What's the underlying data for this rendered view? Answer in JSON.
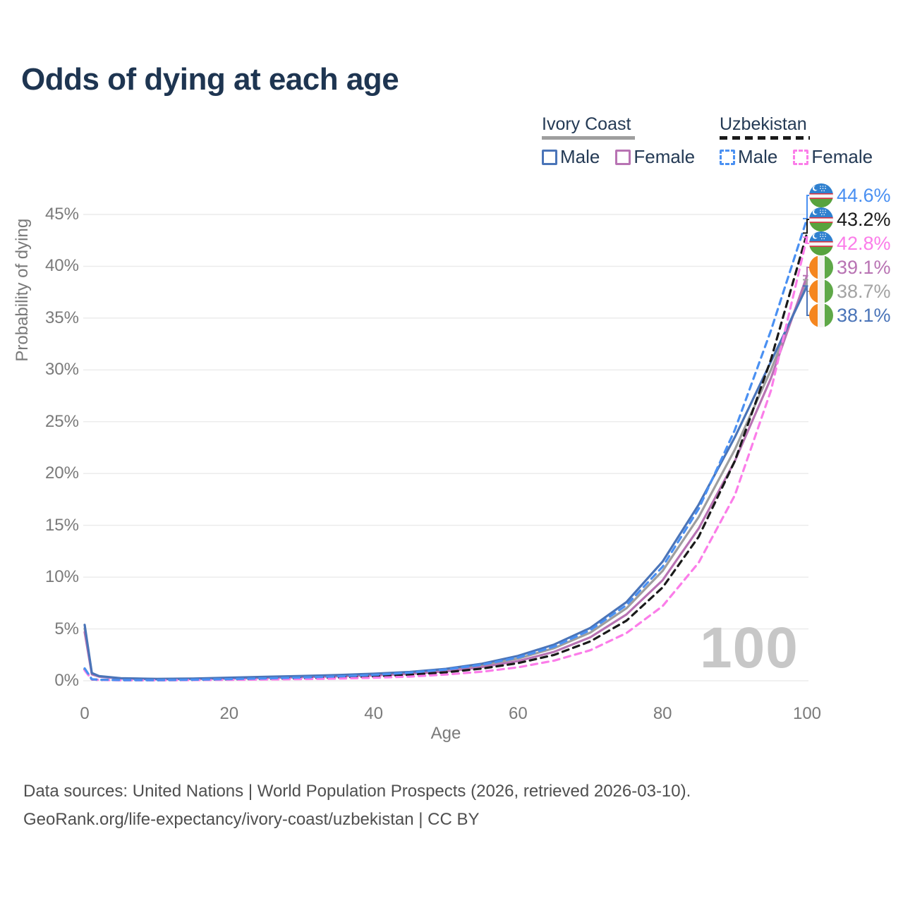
{
  "title": "Odds of dying at each age",
  "watermark_age": "100",
  "legend": {
    "groups": [
      {
        "name": "Ivory Coast",
        "line_style": "solid",
        "combined_color": "#9e9e9e",
        "items": [
          {
            "label": "Male",
            "color": "#4a74b8"
          },
          {
            "label": "Female",
            "color": "#b873b3"
          }
        ]
      },
      {
        "name": "Uzbekistan",
        "line_style": "dashed",
        "combined_color": "#1a1a1a",
        "items": [
          {
            "label": "Male",
            "color": "#4a90f2"
          },
          {
            "label": "Female",
            "color": "#fb7de9"
          }
        ]
      }
    ]
  },
  "axes": {
    "y_title": "Probability of dying",
    "x_title": "Age",
    "y_tick_labels": [
      "0%",
      "5%",
      "10%",
      "15%",
      "20%",
      "25%",
      "30%",
      "35%",
      "40%",
      "45%"
    ],
    "x_tick_labels": [
      "0",
      "20",
      "40",
      "60",
      "80",
      "100"
    ]
  },
  "end_labels": [
    {
      "flag": "uzbekistan-flag",
      "series": "Uzbekistan Male",
      "value": "44.6%",
      "color": "#4a90f2"
    },
    {
      "flag": "uzbekistan-flag",
      "series": "Uzbekistan Both sexes",
      "value": "43.2%",
      "color": "#1a1a1a"
    },
    {
      "flag": "uzbekistan-flag",
      "series": "Uzbekistan Female",
      "value": "42.8%",
      "color": "#fb7de9"
    },
    {
      "flag": "ivory-coast-flag",
      "series": "Ivory Coast Female",
      "value": "39.1%",
      "color": "#b873b3"
    },
    {
      "flag": "ivory-coast-flag",
      "series": "Ivory Coast Both sexes",
      "value": "38.7%",
      "color": "#a3a3a3"
    },
    {
      "flag": "ivory-coast-flag",
      "series": "Ivory Coast Male",
      "value": "38.1%",
      "color": "#4a74b8"
    }
  ],
  "footer": {
    "line1": "Data sources: United Nations | World Population Prospects (2026, retrieved 2026-03-10).",
    "line2": "GeoRank.org/life-expectancy/ivory-coast/uzbekistan | CC BY"
  },
  "chart_data": {
    "type": "line",
    "title": "Odds of dying at each age",
    "xlabel": "Age",
    "ylabel": "Probability of dying",
    "xlim": [
      0,
      100
    ],
    "ylim_pct": [
      0,
      45
    ],
    "x_ticks": [
      0,
      20,
      40,
      60,
      80,
      100
    ],
    "y_ticks_pct": [
      0,
      5,
      10,
      15,
      20,
      25,
      30,
      35,
      40,
      45
    ],
    "grid": "horizontal",
    "legend_position": "top-right",
    "x_ages": [
      0,
      1,
      2,
      5,
      10,
      15,
      20,
      25,
      30,
      35,
      40,
      45,
      50,
      55,
      60,
      65,
      70,
      75,
      80,
      85,
      90,
      95,
      100
    ],
    "series": [
      {
        "name": "Ivory Coast Both sexes",
        "country": "Ivory Coast",
        "sex": "both",
        "line_style": "solid",
        "color": "#9e9e9e",
        "values_pct": [
          5.05,
          0.68,
          0.42,
          0.23,
          0.17,
          0.2,
          0.26,
          0.33,
          0.4,
          0.49,
          0.6,
          0.75,
          1.02,
          1.48,
          2.15,
          3.15,
          4.65,
          7.0,
          10.6,
          15.8,
          22.3,
          30.0,
          38.7
        ],
        "end_value_pct": 38.7
      },
      {
        "name": "Ivory Coast Female",
        "country": "Ivory Coast",
        "sex": "female",
        "line_style": "solid",
        "color": "#b873b3",
        "values_pct": [
          4.7,
          0.62,
          0.4,
          0.22,
          0.15,
          0.18,
          0.22,
          0.28,
          0.35,
          0.43,
          0.52,
          0.66,
          0.9,
          1.32,
          1.9,
          2.8,
          4.2,
          6.4,
          9.7,
          14.7,
          21.2,
          29.2,
          39.1
        ],
        "end_value_pct": 39.1
      },
      {
        "name": "Ivory Coast Male",
        "country": "Ivory Coast",
        "sex": "male",
        "line_style": "solid",
        "color": "#4a74b8",
        "values_pct": [
          5.4,
          0.75,
          0.45,
          0.25,
          0.18,
          0.22,
          0.3,
          0.38,
          0.46,
          0.56,
          0.68,
          0.85,
          1.15,
          1.65,
          2.4,
          3.5,
          5.1,
          7.6,
          11.5,
          17.0,
          23.5,
          30.8,
          38.1
        ],
        "end_value_pct": 38.1
      },
      {
        "name": "Uzbekistan Both sexes",
        "country": "Uzbekistan",
        "sex": "both",
        "line_style": "dashed",
        "color": "#1a1a1a",
        "values_pct": [
          1.1,
          0.13,
          0.09,
          0.06,
          0.055,
          0.08,
          0.12,
          0.17,
          0.23,
          0.31,
          0.42,
          0.58,
          0.82,
          1.18,
          1.7,
          2.5,
          3.8,
          5.8,
          9.0,
          13.9,
          21.2,
          31.0,
          43.2
        ],
        "end_value_pct": 43.2
      },
      {
        "name": "Uzbekistan Female",
        "country": "Uzbekistan",
        "sex": "female",
        "line_style": "dashed",
        "color": "#fb7de9",
        "values_pct": [
          1.0,
          0.12,
          0.08,
          0.05,
          0.05,
          0.07,
          0.09,
          0.12,
          0.16,
          0.21,
          0.29,
          0.4,
          0.6,
          0.88,
          1.3,
          1.95,
          2.95,
          4.6,
          7.2,
          11.4,
          17.9,
          28.0,
          42.8
        ],
        "end_value_pct": 42.8
      },
      {
        "name": "Uzbekistan Male",
        "country": "Uzbekistan",
        "sex": "male",
        "line_style": "dashed",
        "color": "#4a90f2",
        "values_pct": [
          1.2,
          0.15,
          0.1,
          0.07,
          0.06,
          0.1,
          0.16,
          0.23,
          0.31,
          0.42,
          0.56,
          0.78,
          1.08,
          1.55,
          2.25,
          3.3,
          4.9,
          7.3,
          11.0,
          16.6,
          24.2,
          33.8,
          44.6
        ],
        "end_value_pct": 44.6
      }
    ],
    "annotations": {
      "age_counter": "100",
      "end_values_order_top_to_bottom": [
        "44.6%",
        "43.2%",
        "42.8%",
        "39.1%",
        "38.7%",
        "38.1%"
      ]
    }
  },
  "layout_colors": {
    "title": "#1e3551",
    "tick": "#7a7a7a",
    "grid": "#ececec",
    "footer": "#4f4f4f",
    "watermark": "#c7c7c7"
  }
}
